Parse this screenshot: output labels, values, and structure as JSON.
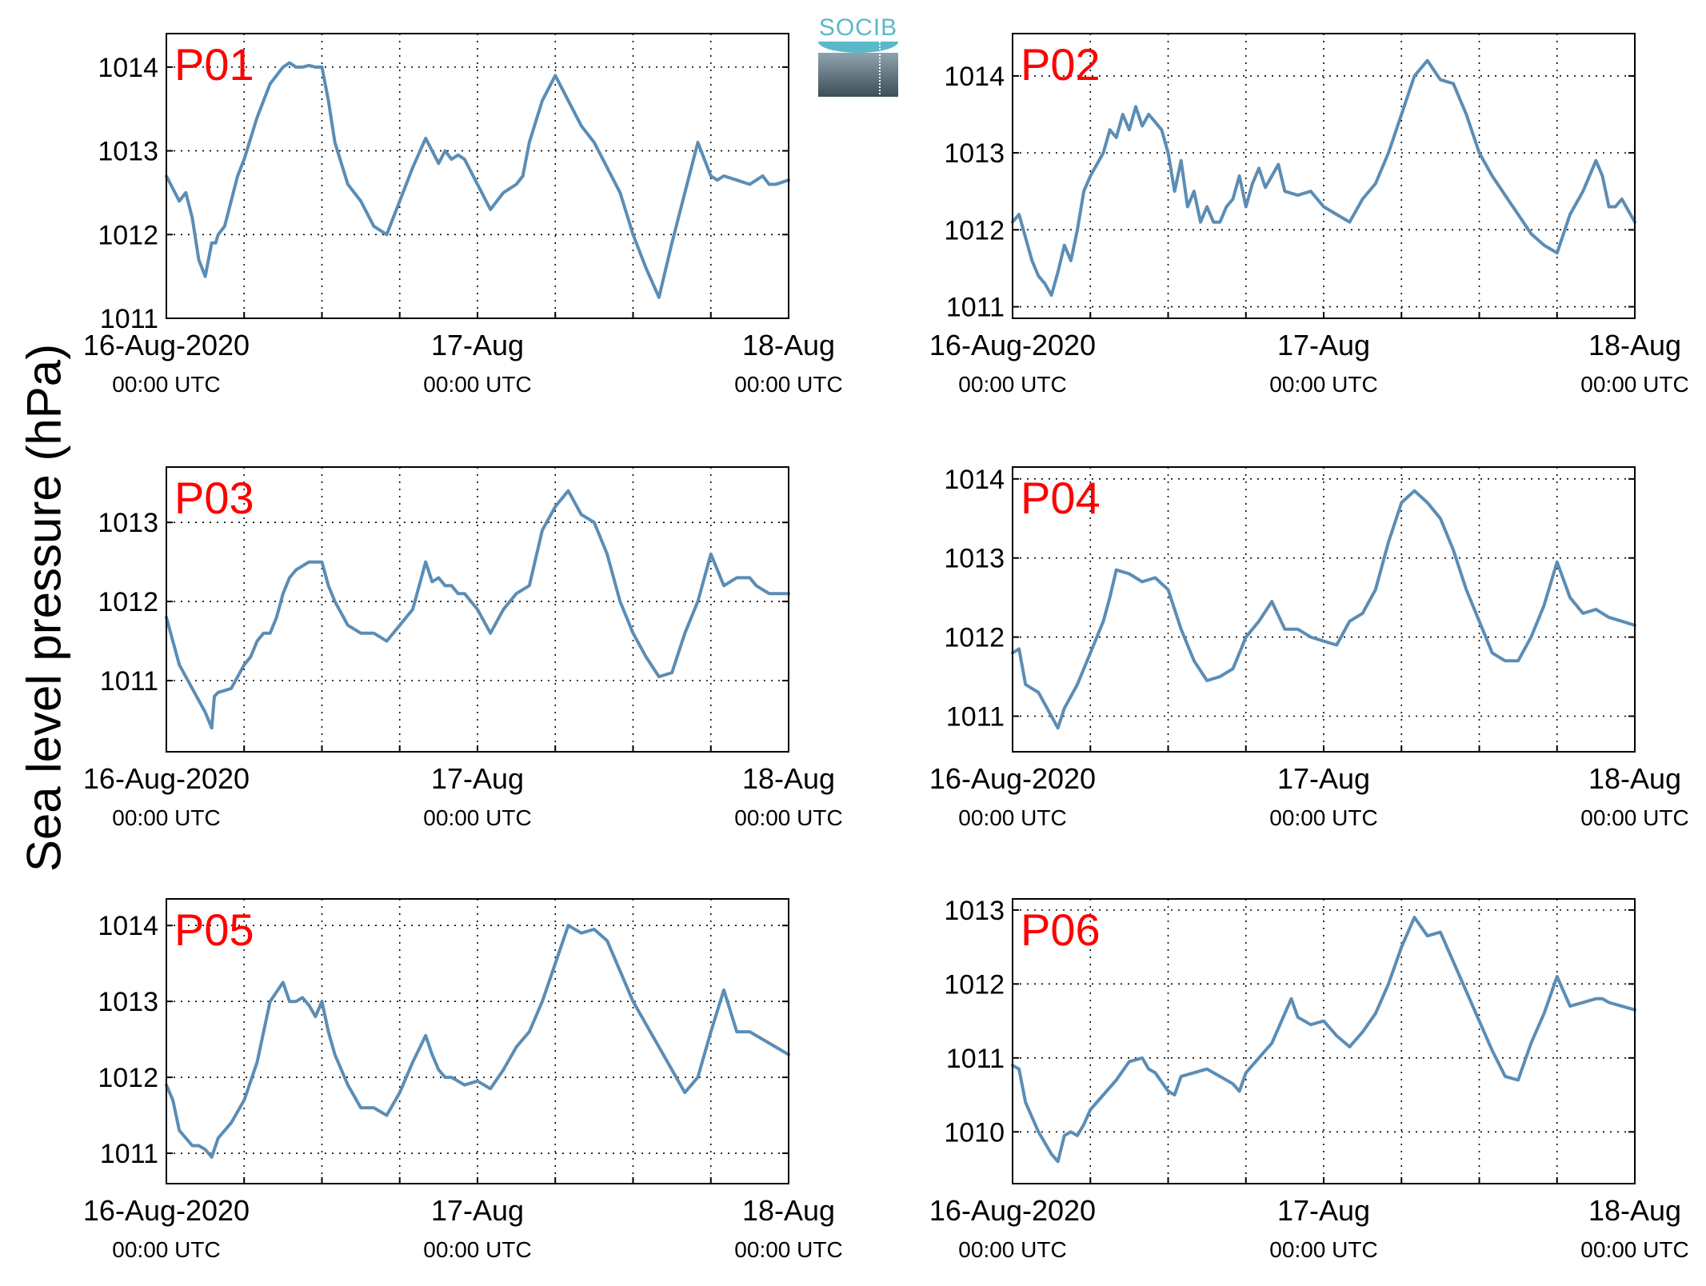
{
  "figure": {
    "ylabel": "Sea level pressure (hPa)",
    "logo_text": "SOCIB",
    "colors": {
      "line": "#5b8db5",
      "panel_label": "#ff0000",
      "axis": "#000000",
      "grid": "#000000"
    }
  },
  "chart_data": [
    {
      "type": "line",
      "label": "P01",
      "xlim": [
        0,
        48
      ],
      "ylim": [
        1011,
        1014.4
      ],
      "yticks": [
        1011,
        1012,
        1013,
        1014
      ],
      "xgrid": [
        6,
        12,
        18,
        24,
        30,
        36,
        42,
        48
      ],
      "xticks": [
        {
          "x": 0,
          "date": "16-Aug-2020",
          "time": "00:00 UTC"
        },
        {
          "x": 24,
          "date": "17-Aug",
          "time": "00:00 UTC"
        },
        {
          "x": 48,
          "date": "18-Aug",
          "time": "00:00 UTC"
        }
      ],
      "x": [
        0,
        1,
        1.5,
        2,
        2.5,
        3,
        3.5,
        3.8,
        4,
        4.5,
        5,
        5.5,
        6,
        7,
        8,
        9,
        9.5,
        10,
        10.5,
        11,
        11.5,
        12,
        12.5,
        13,
        14,
        15,
        16,
        17,
        17.5,
        18,
        19,
        20,
        21,
        21.5,
        22,
        22.5,
        23,
        24,
        25,
        26,
        27,
        27.5,
        28,
        29,
        30,
        31,
        32,
        33,
        34,
        35,
        36,
        37,
        38,
        39,
        40,
        41,
        42,
        42.5,
        43,
        44,
        45,
        45.5,
        46,
        46.5,
        47,
        48
      ],
      "y": [
        1012.7,
        1012.4,
        1012.5,
        1012.2,
        1011.7,
        1011.5,
        1011.9,
        1011.9,
        1012.0,
        1012.1,
        1012.4,
        1012.7,
        1012.9,
        1013.4,
        1013.8,
        1014.0,
        1014.05,
        1014.0,
        1014.0,
        1014.02,
        1014.0,
        1014.0,
        1013.6,
        1013.1,
        1012.6,
        1012.4,
        1012.1,
        1012.0,
        1012.2,
        1012.4,
        1012.8,
        1013.15,
        1012.85,
        1013.0,
        1012.9,
        1012.95,
        1012.9,
        1012.6,
        1012.3,
        1012.5,
        1012.6,
        1012.7,
        1013.1,
        1013.6,
        1013.9,
        1013.6,
        1013.3,
        1013.1,
        1012.8,
        1012.5,
        1012.0,
        1011.6,
        1011.25,
        1011.9,
        1012.5,
        1013.1,
        1012.7,
        1012.65,
        1012.7,
        1012.65,
        1012.6,
        1012.65,
        1012.7,
        1012.6,
        1012.6,
        1012.65
      ],
      "series_name": ""
    },
    {
      "type": "line",
      "label": "P02",
      "xlim": [
        0,
        48
      ],
      "ylim": [
        1010.85,
        1014.55
      ],
      "yticks": [
        1011,
        1012,
        1013,
        1014
      ],
      "xgrid": [
        6,
        12,
        18,
        24,
        30,
        36,
        42,
        48
      ],
      "xticks": [
        {
          "x": 0,
          "date": "16-Aug-2020",
          "time": "00:00 UTC"
        },
        {
          "x": 24,
          "date": "17-Aug",
          "time": "00:00 UTC"
        },
        {
          "x": 48,
          "date": "18-Aug",
          "time": "00:00 UTC"
        }
      ],
      "x": [
        0,
        0.5,
        1,
        1.5,
        2,
        2.5,
        3,
        3.5,
        4,
        4.5,
        5,
        5.5,
        6,
        7,
        7.5,
        8,
        8.5,
        9,
        9.5,
        10,
        10.5,
        11,
        11.5,
        12,
        12.5,
        13,
        13.5,
        14,
        14.5,
        15,
        15.5,
        16,
        16.5,
        17,
        17.5,
        18,
        18.5,
        19,
        19.5,
        20,
        20.5,
        21,
        22,
        23,
        24,
        25,
        26,
        27,
        28,
        29,
        30,
        31,
        32,
        33,
        34,
        35,
        36,
        37,
        38,
        39,
        40,
        41,
        42,
        43,
        44,
        45,
        45.5,
        46,
        46.5,
        47,
        48
      ],
      "y": [
        1012.1,
        1012.2,
        1011.9,
        1011.6,
        1011.4,
        1011.3,
        1011.15,
        1011.45,
        1011.8,
        1011.6,
        1012.0,
        1012.5,
        1012.7,
        1013.0,
        1013.3,
        1013.2,
        1013.5,
        1013.3,
        1013.6,
        1013.35,
        1013.5,
        1013.4,
        1013.3,
        1013.0,
        1012.5,
        1012.9,
        1012.3,
        1012.5,
        1012.1,
        1012.3,
        1012.1,
        1012.1,
        1012.3,
        1012.4,
        1012.7,
        1012.3,
        1012.6,
        1012.8,
        1012.55,
        1012.7,
        1012.85,
        1012.5,
        1012.45,
        1012.5,
        1012.3,
        1012.2,
        1012.1,
        1012.4,
        1012.6,
        1013.0,
        1013.5,
        1014.0,
        1014.2,
        1013.95,
        1013.9,
        1013.5,
        1013.0,
        1012.7,
        1012.45,
        1012.2,
        1011.95,
        1011.8,
        1011.7,
        1012.2,
        1012.5,
        1012.9,
        1012.7,
        1012.3,
        1012.3,
        1012.4,
        1012.1
      ],
      "series_name": ""
    },
    {
      "type": "line",
      "label": "P03",
      "xlim": [
        0,
        48
      ],
      "ylim": [
        1010.1,
        1013.7
      ],
      "yticks": [
        1011,
        1012,
        1013
      ],
      "xgrid": [
        6,
        12,
        18,
        24,
        30,
        36,
        42,
        48
      ],
      "xticks": [
        {
          "x": 0,
          "date": "16-Aug-2020",
          "time": "00:00 UTC"
        },
        {
          "x": 24,
          "date": "17-Aug",
          "time": "00:00 UTC"
        },
        {
          "x": 48,
          "date": "18-Aug",
          "time": "00:00 UTC"
        }
      ],
      "x": [
        0,
        0.5,
        1,
        2,
        3,
        3.5,
        3.7,
        4,
        5,
        6,
        6.5,
        7,
        7.5,
        8,
        8.5,
        9,
        9.5,
        10,
        11,
        12,
        12.5,
        13,
        14,
        15,
        16,
        17,
        18,
        19,
        20,
        20.5,
        21,
        21.5,
        22,
        22.5,
        23,
        24,
        25,
        26,
        27,
        28,
        29,
        30,
        31,
        32,
        33,
        34,
        35,
        36,
        37,
        38,
        39,
        40,
        41,
        42,
        43,
        44,
        45,
        45.5,
        46,
        46.5,
        47,
        48
      ],
      "y": [
        1011.8,
        1011.5,
        1011.2,
        1010.9,
        1010.6,
        1010.4,
        1010.8,
        1010.85,
        1010.9,
        1011.2,
        1011.3,
        1011.5,
        1011.6,
        1011.6,
        1011.8,
        1012.1,
        1012.3,
        1012.4,
        1012.5,
        1012.5,
        1012.2,
        1012.0,
        1011.7,
        1011.6,
        1011.6,
        1011.5,
        1011.7,
        1011.9,
        1012.5,
        1012.25,
        1012.3,
        1012.2,
        1012.2,
        1012.1,
        1012.1,
        1011.9,
        1011.6,
        1011.9,
        1012.1,
        1012.2,
        1012.9,
        1013.2,
        1013.4,
        1013.1,
        1013.0,
        1012.6,
        1012.0,
        1011.6,
        1011.3,
        1011.05,
        1011.1,
        1011.6,
        1012.0,
        1012.6,
        1012.2,
        1012.3,
        1012.3,
        1012.2,
        1012.15,
        1012.1,
        1012.1,
        1012.1
      ],
      "series_name": ""
    },
    {
      "type": "line",
      "label": "P04",
      "xlim": [
        0,
        48
      ],
      "ylim": [
        1010.55,
        1014.15
      ],
      "yticks": [
        1011,
        1012,
        1013,
        1014
      ],
      "xgrid": [
        6,
        12,
        18,
        24,
        30,
        36,
        42,
        48
      ],
      "xticks": [
        {
          "x": 0,
          "date": "16-Aug-2020",
          "time": "00:00 UTC"
        },
        {
          "x": 24,
          "date": "17-Aug",
          "time": "00:00 UTC"
        },
        {
          "x": 48,
          "date": "18-Aug",
          "time": "00:00 UTC"
        }
      ],
      "x": [
        0,
        0.5,
        1,
        2,
        3,
        3.5,
        4,
        5,
        6,
        7,
        7.5,
        8,
        9,
        10,
        11,
        12,
        13,
        14,
        15,
        16,
        17,
        18,
        19,
        20,
        21,
        22,
        23,
        24,
        25,
        26,
        27,
        28,
        29,
        30,
        31,
        32,
        33,
        34,
        35,
        36,
        37,
        38,
        39,
        40,
        41,
        42,
        43,
        44,
        45,
        45.5,
        46,
        47,
        48
      ],
      "y": [
        1011.8,
        1011.85,
        1011.4,
        1011.3,
        1011.0,
        1010.85,
        1011.1,
        1011.4,
        1011.8,
        1012.2,
        1012.5,
        1012.85,
        1012.8,
        1012.7,
        1012.75,
        1012.6,
        1012.1,
        1011.7,
        1011.45,
        1011.5,
        1011.6,
        1012.0,
        1012.2,
        1012.45,
        1012.1,
        1012.1,
        1012.0,
        1011.95,
        1011.9,
        1012.2,
        1012.3,
        1012.6,
        1013.2,
        1013.7,
        1013.85,
        1013.7,
        1013.5,
        1013.1,
        1012.6,
        1012.2,
        1011.8,
        1011.7,
        1011.7,
        1012.0,
        1012.4,
        1012.95,
        1012.5,
        1012.3,
        1012.35,
        1012.3,
        1012.25,
        1012.2,
        1012.15
      ],
      "series_name": ""
    },
    {
      "type": "line",
      "label": "P05",
      "xlim": [
        0,
        48
      ],
      "ylim": [
        1010.6,
        1014.35
      ],
      "yticks": [
        1011,
        1012,
        1013,
        1014
      ],
      "xgrid": [
        6,
        12,
        18,
        24,
        30,
        36,
        42,
        48
      ],
      "xticks": [
        {
          "x": 0,
          "date": "16-Aug-2020",
          "time": "00:00 UTC"
        },
        {
          "x": 24,
          "date": "17-Aug",
          "time": "00:00 UTC"
        },
        {
          "x": 48,
          "date": "18-Aug",
          "time": "00:00 UTC"
        }
      ],
      "x": [
        0,
        0.5,
        1,
        1.5,
        2,
        2.5,
        3,
        3.5,
        4,
        5,
        6,
        7,
        7.5,
        8,
        9,
        9.5,
        10,
        10.5,
        11,
        11.5,
        12,
        12.5,
        13,
        14,
        15,
        16,
        17,
        18,
        19,
        20,
        20.5,
        21,
        21.5,
        22,
        22.5,
        23,
        24,
        25,
        26,
        27,
        28,
        29,
        30,
        31,
        32,
        33,
        34,
        35,
        36,
        37,
        38,
        39,
        40,
        41,
        42,
        43,
        44,
        45,
        45.5,
        46,
        47,
        48
      ],
      "y": [
        1011.9,
        1011.7,
        1011.3,
        1011.2,
        1011.1,
        1011.1,
        1011.05,
        1010.95,
        1011.2,
        1011.4,
        1011.7,
        1012.2,
        1012.6,
        1013.0,
        1013.25,
        1013.0,
        1013.0,
        1013.05,
        1012.95,
        1012.8,
        1013.0,
        1012.6,
        1012.3,
        1011.9,
        1011.6,
        1011.6,
        1011.5,
        1011.8,
        1012.2,
        1012.55,
        1012.3,
        1012.1,
        1012.0,
        1012.0,
        1011.95,
        1011.9,
        1011.95,
        1011.85,
        1012.1,
        1012.4,
        1012.6,
        1013.0,
        1013.5,
        1014.0,
        1013.9,
        1013.95,
        1013.8,
        1013.4,
        1013.0,
        1012.7,
        1012.4,
        1012.1,
        1011.8,
        1012.0,
        1012.6,
        1013.15,
        1012.6,
        1012.6,
        1012.55,
        1012.5,
        1012.4,
        1012.3
      ],
      "series_name": ""
    },
    {
      "type": "line",
      "label": "P06",
      "xlim": [
        0,
        48
      ],
      "ylim": [
        1009.3,
        1013.15
      ],
      "yticks": [
        1010,
        1011,
        1012,
        1013
      ],
      "xgrid": [
        6,
        12,
        18,
        24,
        30,
        36,
        42,
        48
      ],
      "xticks": [
        {
          "x": 0,
          "date": "16-Aug-2020",
          "time": "00:00 UTC"
        },
        {
          "x": 24,
          "date": "17-Aug",
          "time": "00:00 UTC"
        },
        {
          "x": 48,
          "date": "18-Aug",
          "time": "00:00 UTC"
        }
      ],
      "x": [
        0,
        0.5,
        1,
        2,
        3,
        3.5,
        4,
        4.5,
        5,
        5.5,
        6,
        7,
        8,
        9,
        10,
        10.5,
        11,
        12,
        12.5,
        13,
        14,
        15,
        16,
        17,
        17.5,
        18,
        19,
        20,
        21,
        21.5,
        22,
        23,
        24,
        25,
        26,
        27,
        28,
        29,
        30,
        31,
        32,
        33,
        34,
        35,
        36,
        37,
        38,
        39,
        40,
        41,
        42,
        43,
        44,
        45,
        45.5,
        46,
        47,
        48
      ],
      "y": [
        1010.9,
        1010.85,
        1010.4,
        1010.0,
        1009.7,
        1009.6,
        1009.95,
        1010.0,
        1009.95,
        1010.1,
        1010.3,
        1010.5,
        1010.7,
        1010.95,
        1011.0,
        1010.85,
        1010.8,
        1010.55,
        1010.5,
        1010.75,
        1010.8,
        1010.85,
        1010.75,
        1010.65,
        1010.55,
        1010.8,
        1011.0,
        1011.2,
        1011.6,
        1011.8,
        1011.55,
        1011.45,
        1011.5,
        1011.3,
        1011.15,
        1011.35,
        1011.6,
        1012.0,
        1012.5,
        1012.9,
        1012.65,
        1012.7,
        1012.3,
        1011.9,
        1011.5,
        1011.1,
        1010.75,
        1010.7,
        1011.2,
        1011.6,
        1012.1,
        1011.7,
        1011.75,
        1011.8,
        1011.8,
        1011.75,
        1011.7,
        1011.65
      ],
      "series_name": ""
    }
  ]
}
